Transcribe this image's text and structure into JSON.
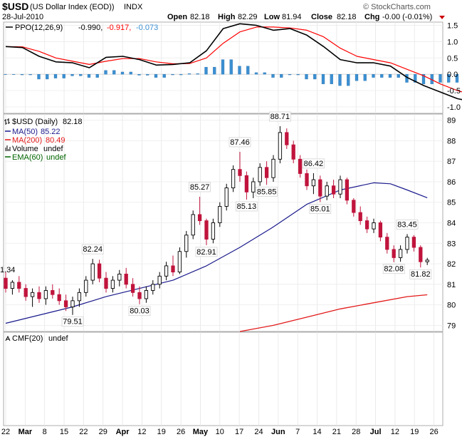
{
  "header": {
    "symbol": "$USD",
    "name": "(US Dollar Index (EOD))",
    "exchange": "INDX",
    "date": "28-Jul-2010",
    "open_label": "Open",
    "open": "82.18",
    "high_label": "High",
    "high": "82.29",
    "low_label": "Low",
    "low": "81.94",
    "close_label": "Close",
    "close": "82.18",
    "chg_label": "Chg",
    "chg": "-0.00 (-0.01%)",
    "watermark": "© StockCharts.com",
    "down_color": "#cc0000"
  },
  "ppo_panel": {
    "legend_label": "PPO(12,26,9)",
    "ppo_value": "-0.990,",
    "signal_value": "-0.917,",
    "hist_value": "-0.073",
    "ppo_color": "#000000",
    "signal_color": "#ff0000",
    "hist_color": "#3b8fd1"
  },
  "price_panel": {
    "legend": [
      {
        "label": "$USD (Daily)",
        "value": "82.18",
        "color": "#000000"
      },
      {
        "label": "MA(50)",
        "value": "85.22",
        "color": "#1a1a8c"
      },
      {
        "label": "MA(200)",
        "value": "80.49",
        "color": "#e31a1a"
      },
      {
        "label": "Volume",
        "value": "undef",
        "color": "#000000"
      },
      {
        "label": "EMA(60)",
        "value": "undef",
        "color": "#006400"
      }
    ],
    "left_edge_label": "1.34",
    "up_color": "#000000",
    "down_color": "#c0143c"
  },
  "cmf_panel": {
    "label": "CMF(20)",
    "value": "undef"
  },
  "x_labels": [
    "22",
    "Mar",
    "8",
    "15",
    "22",
    "29",
    "Apr",
    "12",
    "19",
    "26",
    "May",
    "10",
    "17",
    "24",
    "Jun",
    "7",
    "14",
    "21",
    "28",
    "Jul",
    "12",
    "19",
    "26"
  ],
  "chart_data": [
    {
      "type": "line",
      "title": "PPO(12,26,9)",
      "y_ticks": [
        "1.5",
        "1.0",
        "0.5",
        "0.0",
        "-0.5",
        "-1.0"
      ],
      "ylim": [
        -1.2,
        1.6
      ],
      "x": [
        0,
        5,
        10,
        15,
        20,
        25,
        30,
        35,
        40,
        45,
        50,
        55,
        60,
        65,
        70,
        75,
        80,
        85,
        90,
        95,
        100,
        105,
        110,
        115,
        120,
        125,
        130,
        135,
        140,
        145,
        150,
        155
      ],
      "series": [
        {
          "name": "PPO",
          "values": [
            0.85,
            0.82,
            0.55,
            0.38,
            0.35,
            0.2,
            0.52,
            0.55,
            0.45,
            0.28,
            0.3,
            0.35,
            0.72,
            1.4,
            1.55,
            1.5,
            1.35,
            1.4,
            1.2,
            0.85,
            0.45,
            0.35,
            0.35,
            0.25,
            -0.1,
            -0.35,
            -0.55,
            -0.75,
            -0.85,
            -0.9,
            -0.98,
            -0.99
          ]
        },
        {
          "name": "Signal",
          "values": [
            0.85,
            0.84,
            0.7,
            0.5,
            0.4,
            0.3,
            0.4,
            0.48,
            0.48,
            0.38,
            0.32,
            0.33,
            0.5,
            0.95,
            1.3,
            1.45,
            1.45,
            1.42,
            1.35,
            1.15,
            0.8,
            0.55,
            0.45,
            0.35,
            0.15,
            -0.05,
            -0.3,
            -0.5,
            -0.65,
            -0.78,
            -0.88,
            -0.92
          ]
        },
        {
          "name": "Histogram",
          "values": [
            0.0,
            -0.02,
            -0.15,
            -0.12,
            -0.05,
            -0.1,
            0.12,
            0.07,
            -0.03,
            -0.1,
            -0.02,
            0.02,
            0.22,
            0.45,
            0.25,
            0.05,
            -0.1,
            -0.02,
            -0.15,
            -0.3,
            -0.35,
            -0.2,
            -0.1,
            -0.1,
            -0.25,
            -0.3,
            -0.25,
            -0.25,
            -0.2,
            -0.12,
            -0.1,
            -0.07
          ]
        }
      ]
    },
    {
      "type": "candlestick",
      "title": "$USD (Daily) 82.18",
      "y_ticks": [
        "89",
        "88",
        "87",
        "86",
        "85",
        "84",
        "83",
        "82",
        "81",
        "80",
        "79"
      ],
      "ylim": [
        78.7,
        89.3
      ],
      "candles": [
        {
          "x": 0,
          "o": 81.3,
          "h": 81.6,
          "l": 80.6,
          "c": 80.8
        },
        {
          "x": 2,
          "o": 80.8,
          "h": 81.2,
          "l": 80.5,
          "c": 81.1
        },
        {
          "x": 4,
          "o": 81.1,
          "h": 81.4,
          "l": 80.6,
          "c": 80.8
        },
        {
          "x": 6,
          "o": 80.8,
          "h": 81.0,
          "l": 80.2,
          "c": 80.4
        },
        {
          "x": 8,
          "o": 80.4,
          "h": 80.8,
          "l": 79.9,
          "c": 80.6
        },
        {
          "x": 10,
          "o": 80.6,
          "h": 80.9,
          "l": 80.1,
          "c": 80.3
        },
        {
          "x": 12,
          "o": 80.3,
          "h": 80.9,
          "l": 80.0,
          "c": 80.7
        },
        {
          "x": 14,
          "o": 80.7,
          "h": 81.0,
          "l": 80.3,
          "c": 80.5
        },
        {
          "x": 16,
          "o": 80.5,
          "h": 80.8,
          "l": 80.0,
          "c": 80.2
        },
        {
          "x": 18,
          "o": 80.2,
          "h": 80.5,
          "l": 79.7,
          "c": 79.9
        },
        {
          "x": 20,
          "o": 79.9,
          "h": 80.4,
          "l": 79.51,
          "c": 80.2
        },
        {
          "x": 22,
          "o": 80.2,
          "h": 80.8,
          "l": 79.9,
          "c": 80.6
        },
        {
          "x": 24,
          "o": 80.6,
          "h": 81.4,
          "l": 80.4,
          "c": 81.2
        },
        {
          "x": 26,
          "o": 81.2,
          "h": 82.24,
          "l": 81.0,
          "c": 82.0
        },
        {
          "x": 28,
          "o": 82.0,
          "h": 82.2,
          "l": 81.1,
          "c": 81.3
        },
        {
          "x": 30,
          "o": 81.3,
          "h": 81.6,
          "l": 80.6,
          "c": 80.8
        },
        {
          "x": 32,
          "o": 80.8,
          "h": 81.4,
          "l": 80.6,
          "c": 81.2
        },
        {
          "x": 34,
          "o": 81.2,
          "h": 81.7,
          "l": 80.9,
          "c": 81.5
        },
        {
          "x": 36,
          "o": 81.5,
          "h": 81.8,
          "l": 80.8,
          "c": 81.0
        },
        {
          "x": 38,
          "o": 81.0,
          "h": 81.3,
          "l": 80.4,
          "c": 80.6
        },
        {
          "x": 40,
          "o": 80.6,
          "h": 80.9,
          "l": 80.03,
          "c": 80.3
        },
        {
          "x": 42,
          "o": 80.3,
          "h": 80.9,
          "l": 80.1,
          "c": 80.7
        },
        {
          "x": 44,
          "o": 80.7,
          "h": 81.2,
          "l": 80.5,
          "c": 81.0
        },
        {
          "x": 46,
          "o": 81.0,
          "h": 81.6,
          "l": 80.8,
          "c": 81.4
        },
        {
          "x": 48,
          "o": 81.4,
          "h": 82.1,
          "l": 81.2,
          "c": 81.9
        },
        {
          "x": 50,
          "o": 81.9,
          "h": 82.4,
          "l": 81.4,
          "c": 81.6
        },
        {
          "x": 52,
          "o": 81.6,
          "h": 82.8,
          "l": 81.5,
          "c": 82.6
        },
        {
          "x": 54,
          "o": 82.6,
          "h": 83.6,
          "l": 82.3,
          "c": 83.4
        },
        {
          "x": 56,
          "o": 83.4,
          "h": 84.6,
          "l": 83.2,
          "c": 84.4
        },
        {
          "x": 58,
          "o": 84.4,
          "h": 85.27,
          "l": 83.9,
          "c": 84.1
        },
        {
          "x": 60,
          "o": 84.1,
          "h": 84.2,
          "l": 82.91,
          "c": 83.2
        },
        {
          "x": 62,
          "o": 83.2,
          "h": 84.2,
          "l": 83.0,
          "c": 84.0
        },
        {
          "x": 64,
          "o": 84.0,
          "h": 85.0,
          "l": 83.8,
          "c": 84.8
        },
        {
          "x": 66,
          "o": 84.8,
          "h": 85.9,
          "l": 84.6,
          "c": 85.7
        },
        {
          "x": 68,
          "o": 85.7,
          "h": 86.8,
          "l": 85.5,
          "c": 86.6
        },
        {
          "x": 70,
          "o": 86.6,
          "h": 87.46,
          "l": 86.0,
          "c": 86.3
        },
        {
          "x": 72,
          "o": 86.3,
          "h": 86.5,
          "l": 85.13,
          "c": 85.5
        },
        {
          "x": 74,
          "o": 85.5,
          "h": 86.2,
          "l": 85.2,
          "c": 86.0
        },
        {
          "x": 76,
          "o": 86.0,
          "h": 86.9,
          "l": 85.8,
          "c": 86.7
        },
        {
          "x": 78,
          "o": 86.7,
          "h": 87.0,
          "l": 85.85,
          "c": 86.2
        },
        {
          "x": 80,
          "o": 86.2,
          "h": 87.3,
          "l": 86.0,
          "c": 87.1
        },
        {
          "x": 82,
          "o": 87.1,
          "h": 88.71,
          "l": 86.9,
          "c": 88.4
        },
        {
          "x": 84,
          "o": 88.4,
          "h": 88.6,
          "l": 87.6,
          "c": 87.8
        },
        {
          "x": 86,
          "o": 87.8,
          "h": 88.0,
          "l": 86.9,
          "c": 87.1
        },
        {
          "x": 88,
          "o": 87.1,
          "h": 87.3,
          "l": 86.2,
          "c": 86.4
        },
        {
          "x": 90,
          "o": 86.4,
          "h": 86.6,
          "l": 85.6,
          "c": 85.8
        },
        {
          "x": 92,
          "o": 85.8,
          "h": 86.42,
          "l": 85.4,
          "c": 86.1
        },
        {
          "x": 94,
          "o": 86.1,
          "h": 86.3,
          "l": 85.01,
          "c": 85.3
        },
        {
          "x": 96,
          "o": 85.3,
          "h": 86.0,
          "l": 85.1,
          "c": 85.8
        },
        {
          "x": 98,
          "o": 85.8,
          "h": 86.1,
          "l": 85.2,
          "c": 85.4
        },
        {
          "x": 100,
          "o": 85.4,
          "h": 86.3,
          "l": 85.2,
          "c": 86.1
        },
        {
          "x": 102,
          "o": 86.1,
          "h": 86.2,
          "l": 84.9,
          "c": 85.1
        },
        {
          "x": 104,
          "o": 85.1,
          "h": 85.2,
          "l": 84.3,
          "c": 84.5
        },
        {
          "x": 106,
          "o": 84.5,
          "h": 84.8,
          "l": 83.9,
          "c": 84.1
        },
        {
          "x": 108,
          "o": 84.1,
          "h": 84.3,
          "l": 83.5,
          "c": 83.7
        },
        {
          "x": 110,
          "o": 83.7,
          "h": 84.2,
          "l": 83.5,
          "c": 84.0
        },
        {
          "x": 112,
          "o": 84.0,
          "h": 84.1,
          "l": 83.1,
          "c": 83.3
        },
        {
          "x": 114,
          "o": 83.3,
          "h": 83.5,
          "l": 82.5,
          "c": 82.7
        },
        {
          "x": 116,
          "o": 82.7,
          "h": 82.9,
          "l": 82.08,
          "c": 82.3
        },
        {
          "x": 118,
          "o": 82.3,
          "h": 82.9,
          "l": 82.1,
          "c": 82.7
        },
        {
          "x": 120,
          "o": 82.7,
          "h": 83.45,
          "l": 82.5,
          "c": 83.3
        },
        {
          "x": 122,
          "o": 83.3,
          "h": 83.4,
          "l": 82.6,
          "c": 82.8
        },
        {
          "x": 124,
          "o": 82.8,
          "h": 82.9,
          "l": 81.82,
          "c": 82.1
        },
        {
          "x": 126,
          "o": 82.1,
          "h": 82.29,
          "l": 81.94,
          "c": 82.18
        }
      ],
      "ma50": {
        "x": [
          0,
          10,
          20,
          30,
          40,
          50,
          60,
          70,
          80,
          90,
          100,
          110,
          115,
          120,
          126
        ],
        "values": [
          79.1,
          79.5,
          79.9,
          80.4,
          80.8,
          81.2,
          81.9,
          82.8,
          83.8,
          84.9,
          85.6,
          85.95,
          85.9,
          85.6,
          85.22
        ]
      },
      "ma200": {
        "x": [
          70,
          80,
          90,
          100,
          110,
          120,
          126
        ],
        "values": [
          78.7,
          79.0,
          79.4,
          79.8,
          80.1,
          80.4,
          80.49
        ]
      },
      "annotations": [
        {
          "text": "82.24",
          "x": 26,
          "y": 82.24,
          "pos": "above"
        },
        {
          "text": "79.51",
          "x": 20,
          "y": 79.51,
          "pos": "below"
        },
        {
          "text": "80.03",
          "x": 40,
          "y": 80.03,
          "pos": "below"
        },
        {
          "text": "85.27",
          "x": 58,
          "y": 85.27,
          "pos": "above"
        },
        {
          "text": "82.91",
          "x": 60,
          "y": 82.91,
          "pos": "below"
        },
        {
          "text": "87.46",
          "x": 70,
          "y": 87.46,
          "pos": "above"
        },
        {
          "text": "85.13",
          "x": 72,
          "y": 85.13,
          "pos": "below"
        },
        {
          "text": "85.85",
          "x": 78,
          "y": 85.85,
          "pos": "below"
        },
        {
          "text": "88.71",
          "x": 82,
          "y": 88.71,
          "pos": "above"
        },
        {
          "text": "86.42",
          "x": 92,
          "y": 86.42,
          "pos": "above"
        },
        {
          "text": "85.01",
          "x": 94,
          "y": 85.01,
          "pos": "below"
        },
        {
          "text": "83.45",
          "x": 120,
          "y": 83.45,
          "pos": "above"
        },
        {
          "text": "82.08",
          "x": 116,
          "y": 82.08,
          "pos": "below"
        },
        {
          "text": "81.82",
          "x": 124,
          "y": 81.82,
          "pos": "below"
        }
      ]
    }
  ]
}
